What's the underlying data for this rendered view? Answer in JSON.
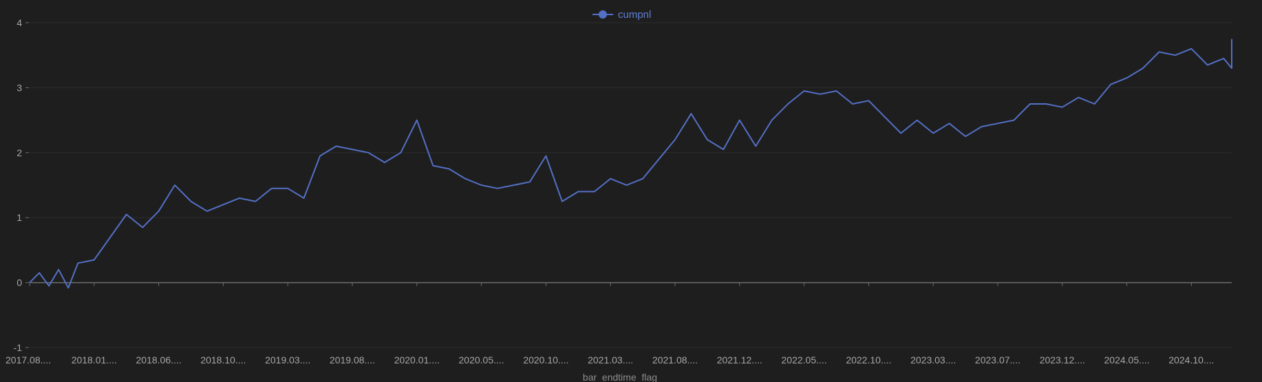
{
  "chart_data": {
    "type": "line",
    "legend": {
      "position": "top-center",
      "label": "cumpnl"
    },
    "xlabel": "bar_endtime_flag",
    "ylabel": "",
    "ylim": [
      -1,
      4
    ],
    "yticks": [
      "-1",
      "0",
      "1",
      "2",
      "3",
      "4"
    ],
    "grid": true,
    "x_tick_labels": [
      "2017.08....",
      "2018.01....",
      "2018.06....",
      "2018.10....",
      "2019.03....",
      "2019.08....",
      "2020.01....",
      "2020.05....",
      "2020.10....",
      "2021.03....",
      "2021.08....",
      "2021.12....",
      "2022.05....",
      "2022.10....",
      "2023.03....",
      "2023.07....",
      "2023.12....",
      "2024.05....",
      "2024.10...."
    ],
    "series": [
      {
        "name": "cumpnl",
        "color": "#5470c6",
        "x": [
          0.0,
          0.15,
          0.3,
          0.45,
          0.6,
          0.75,
          1.0,
          1.25,
          1.5,
          1.75,
          2.0,
          2.25,
          2.5,
          2.75,
          3.0,
          3.25,
          3.5,
          3.75,
          4.0,
          4.25,
          4.5,
          4.75,
          5.0,
          5.25,
          5.5,
          5.75,
          6.0,
          6.25,
          6.5,
          6.75,
          7.0,
          7.25,
          7.5,
          7.75,
          8.0,
          8.25,
          8.5,
          8.75,
          9.0,
          9.25,
          9.5,
          9.75,
          10.0,
          10.25,
          10.5,
          10.75,
          11.0,
          11.25,
          11.5,
          11.75,
          12.0,
          12.25,
          12.5,
          12.75,
          13.0,
          13.25,
          13.5,
          13.75,
          14.0,
          14.25,
          14.5,
          14.75,
          15.0,
          15.25,
          15.5,
          15.75,
          16.0,
          16.25,
          16.5,
          16.75,
          17.0,
          17.25,
          17.5,
          17.75,
          18.0,
          18.25,
          18.5,
          18.75,
          19.0
        ],
        "values": [
          0.0,
          0.15,
          -0.05,
          0.2,
          -0.08,
          0.3,
          0.35,
          0.7,
          1.05,
          0.85,
          1.1,
          1.5,
          1.25,
          1.1,
          1.2,
          1.3,
          1.25,
          1.45,
          1.45,
          1.3,
          1.95,
          2.1,
          2.05,
          2.0,
          1.85,
          2.0,
          2.5,
          1.8,
          1.75,
          1.6,
          1.5,
          1.45,
          1.5,
          1.55,
          1.95,
          1.25,
          1.4,
          1.4,
          1.6,
          1.5,
          1.6,
          1.9,
          2.2,
          2.6,
          2.2,
          2.05,
          2.5,
          2.1,
          2.5,
          2.75,
          2.95,
          2.9,
          2.95,
          2.75,
          2.8,
          2.55,
          2.3,
          2.5,
          2.3,
          2.45,
          2.25,
          2.4,
          2.45,
          2.5,
          2.75,
          2.75,
          2.7,
          2.85,
          2.75,
          3.05,
          3.15,
          3.3,
          3.55,
          3.5,
          3.6,
          3.35,
          3.45,
          3.3,
          3.75
        ]
      }
    ]
  }
}
